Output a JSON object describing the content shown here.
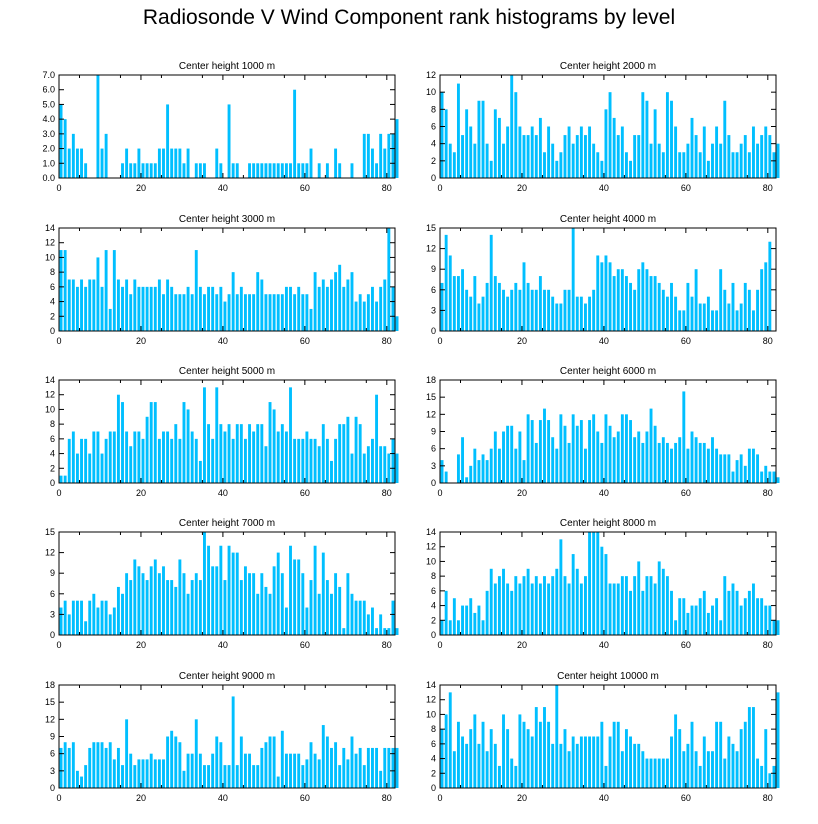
{
  "title": "Radiosonde V Wind Component rank histograms by level",
  "colors": {
    "bar": "#00BFFF",
    "axis": "#000000",
    "background": "#ffffff"
  },
  "chart_data": [
    {
      "type": "bar",
      "title": "Center height 1000 m",
      "xlim": [
        0,
        82
      ],
      "ylim": [
        0,
        7
      ],
      "xticks": [
        0,
        20,
        40,
        60,
        80
      ],
      "yticks": [
        "0.0",
        "1.0",
        "2.0",
        "3.0",
        "4.0",
        "5.0",
        "6.0",
        "7.0"
      ],
      "values": [
        5,
        4,
        2,
        3,
        2,
        2,
        1,
        0,
        0,
        7,
        2,
        3,
        0,
        0,
        0,
        1,
        2,
        1,
        1,
        2,
        1,
        1,
        1,
        1,
        2,
        2,
        5,
        2,
        2,
        2,
        1,
        2,
        0,
        1,
        1,
        1,
        0,
        0,
        2,
        1,
        0,
        5,
        1,
        1,
        0,
        0,
        1,
        1,
        1,
        1,
        1,
        1,
        1,
        1,
        1,
        1,
        1,
        6,
        1,
        1,
        1,
        2,
        0,
        1,
        0,
        1,
        0,
        2,
        1,
        0,
        0,
        1,
        0,
        0,
        3,
        3,
        2,
        1,
        3,
        2,
        3,
        3,
        4
      ]
    },
    {
      "type": "bar",
      "title": "Center height 2000 m",
      "xlim": [
        0,
        82
      ],
      "ylim": [
        0,
        12
      ],
      "xticks": [
        0,
        20,
        40,
        60,
        80
      ],
      "yticks": [
        "0",
        "2",
        "4",
        "6",
        "8",
        "10",
        "12"
      ],
      "values": [
        10,
        8,
        4,
        3,
        11,
        5,
        8,
        6,
        4,
        9,
        9,
        4,
        2,
        8,
        7,
        4,
        6,
        12,
        10,
        6,
        5,
        5,
        6,
        5,
        7,
        3,
        6,
        4,
        2,
        3,
        5,
        6,
        4,
        5,
        6,
        5,
        6,
        4,
        3,
        2,
        8,
        10,
        7,
        5,
        6,
        3,
        2,
        5,
        5,
        10,
        9,
        4,
        8,
        4,
        3,
        10,
        9,
        6,
        3,
        3,
        4,
        7,
        5,
        3,
        6,
        2,
        4,
        6,
        4,
        9,
        5,
        3,
        3,
        4,
        5,
        3,
        6,
        4,
        5,
        6,
        5,
        3,
        4
      ]
    },
    {
      "type": "bar",
      "title": "Center height 3000 m",
      "xlim": [
        0,
        82
      ],
      "ylim": [
        0,
        14
      ],
      "xticks": [
        0,
        20,
        40,
        60,
        80
      ],
      "yticks": [
        "0",
        "2",
        "4",
        "6",
        "8",
        "10",
        "12",
        "14"
      ],
      "values": [
        11,
        11,
        7,
        7,
        6,
        7,
        6,
        7,
        7,
        10,
        6,
        11,
        3,
        11,
        7,
        6,
        7,
        5,
        7,
        6,
        6,
        6,
        6,
        6,
        7,
        5,
        7,
        6,
        5,
        5,
        5,
        6,
        5,
        11,
        6,
        5,
        6,
        6,
        5,
        6,
        4,
        5,
        8,
        5,
        6,
        5,
        5,
        5,
        8,
        7,
        5,
        5,
        5,
        5,
        5,
        6,
        6,
        5,
        6,
        5,
        5,
        3,
        8,
        6,
        7,
        6,
        7,
        8,
        9,
        6,
        7,
        8,
        4,
        5,
        4,
        5,
        6,
        4,
        6,
        7,
        14,
        6,
        2
      ]
    },
    {
      "type": "bar",
      "title": "Center height 4000 m",
      "xlim": [
        0,
        82
      ],
      "ylim": [
        0,
        15
      ],
      "xticks": [
        0,
        20,
        40,
        60,
        80
      ],
      "yticks": [
        "0",
        "3",
        "6",
        "9",
        "12",
        "15"
      ],
      "values": [
        7,
        14,
        11,
        8,
        8,
        9,
        6,
        5,
        8,
        4,
        5,
        7,
        14,
        8,
        7,
        6,
        5,
        6,
        7,
        6,
        10,
        7,
        6,
        6,
        8,
        6,
        6,
        5,
        4,
        4,
        6,
        6,
        15,
        5,
        5,
        4,
        5,
        6,
        11,
        10,
        11,
        10,
        8,
        9,
        9,
        8,
        7,
        6,
        9,
        10,
        9,
        8,
        8,
        7,
        6,
        5,
        7,
        5,
        3,
        3,
        7,
        5,
        9,
        4,
        4,
        5,
        3,
        3,
        9,
        6,
        4,
        7,
        3,
        4,
        7,
        6,
        3,
        6,
        9,
        10,
        13
      ]
    },
    {
      "type": "bar",
      "title": "Center height 5000 m",
      "xlim": [
        0,
        82
      ],
      "ylim": [
        0,
        14
      ],
      "xticks": [
        0,
        20,
        40,
        60,
        80
      ],
      "yticks": [
        "0",
        "2",
        "4",
        "6",
        "8",
        "10",
        "12",
        "14"
      ],
      "values": [
        1,
        1,
        6,
        7,
        4,
        6,
        6,
        4,
        7,
        7,
        4,
        6,
        7,
        7,
        12,
        11,
        7,
        5,
        7,
        7,
        6,
        9,
        11,
        11,
        6,
        7,
        7,
        6,
        8,
        6,
        11,
        10,
        7,
        6,
        3,
        13,
        8,
        6,
        13,
        8,
        7,
        8,
        6,
        8,
        8,
        6,
        8,
        7,
        8,
        8,
        5,
        11,
        10,
        7,
        8,
        7,
        13,
        6,
        6,
        6,
        7,
        6,
        6,
        5,
        8,
        6,
        3,
        6,
        8,
        8,
        9,
        4,
        9,
        8,
        4,
        5,
        6,
        12,
        5,
        5,
        4,
        6,
        4
      ]
    },
    {
      "type": "bar",
      "title": "Center height 6000 m",
      "xlim": [
        0,
        82
      ],
      "ylim": [
        0,
        18
      ],
      "xticks": [
        0,
        20,
        40,
        60,
        80
      ],
      "yticks": [
        "0",
        "3",
        "6",
        "9",
        "12",
        "15",
        "18"
      ],
      "values": [
        4,
        2,
        0,
        0,
        5,
        8,
        1,
        3,
        6,
        4,
        5,
        4,
        6,
        9,
        6,
        9,
        10,
        10,
        6,
        9,
        4,
        12,
        11,
        7,
        11,
        13,
        11,
        8,
        6,
        12,
        10,
        7,
        12,
        10,
        11,
        6,
        11,
        12,
        9,
        7,
        12,
        10,
        8,
        9,
        12,
        12,
        11,
        8,
        9,
        7,
        9,
        13,
        10,
        7,
        8,
        7,
        6,
        7,
        8,
        16,
        6,
        9,
        8,
        7,
        7,
        6,
        8,
        6,
        5,
        5,
        5,
        2,
        4,
        5,
        3,
        6,
        6,
        5,
        2,
        3,
        2,
        2,
        1
      ]
    },
    {
      "type": "bar",
      "title": "Center height 7000 m",
      "xlim": [
        0,
        82
      ],
      "ylim": [
        0,
        15
      ],
      "xticks": [
        0,
        20,
        40,
        60,
        80
      ],
      "yticks": [
        "0",
        "3",
        "6",
        "9",
        "12",
        "15"
      ],
      "values": [
        4,
        5,
        3,
        5,
        5,
        5,
        2,
        5,
        6,
        4,
        5,
        5,
        3,
        4,
        7,
        6,
        9,
        8,
        11,
        10,
        9,
        8,
        10,
        11,
        9,
        10,
        8,
        8,
        7,
        11,
        9,
        6,
        8,
        9,
        8,
        15,
        13,
        10,
        10,
        13,
        8,
        13,
        12,
        12,
        8,
        10,
        9,
        9,
        6,
        9,
        7,
        6,
        10,
        12,
        9,
        4,
        13,
        11,
        11,
        9,
        4,
        8,
        13,
        6,
        12,
        8,
        6,
        9,
        7,
        1,
        9,
        6,
        5,
        5,
        5,
        3,
        4,
        1,
        3,
        1,
        1,
        5,
        1
      ]
    },
    {
      "type": "bar",
      "title": "Center height 8000 m",
      "xlim": [
        0,
        82
      ],
      "ylim": [
        0,
        14
      ],
      "xticks": [
        0,
        20,
        40,
        60,
        80
      ],
      "yticks": [
        "0",
        "2",
        "4",
        "6",
        "8",
        "10",
        "12",
        "14"
      ],
      "values": [
        2,
        6,
        2,
        5,
        2,
        4,
        4,
        5,
        3,
        4,
        2,
        6,
        9,
        7,
        8,
        9,
        7,
        6,
        8,
        7,
        8,
        9,
        7,
        8,
        7,
        8,
        7,
        8,
        9,
        13,
        8,
        7,
        11,
        9,
        7,
        8,
        14,
        14,
        14,
        12,
        11,
        7,
        7,
        7,
        8,
        8,
        6,
        8,
        10,
        6,
        8,
        8,
        7,
        10,
        9,
        8,
        6,
        2,
        5,
        5,
        3,
        4,
        4,
        5,
        6,
        3,
        4,
        5,
        2,
        8,
        6,
        7,
        6,
        4,
        5,
        6,
        7,
        5,
        5,
        4,
        4,
        2,
        2
      ]
    },
    {
      "type": "bar",
      "title": "Center height 9000 m",
      "xlim": [
        0,
        82
      ],
      "ylim": [
        0,
        18
      ],
      "xticks": [
        0,
        20,
        40,
        60,
        80
      ],
      "yticks": [
        "0",
        "3",
        "6",
        "9",
        "12",
        "15",
        "18"
      ],
      "values": [
        7,
        8,
        7,
        8,
        3,
        2,
        4,
        7,
        8,
        8,
        8,
        7,
        8,
        5,
        7,
        4,
        12,
        6,
        4,
        5,
        5,
        5,
        6,
        5,
        5,
        5,
        9,
        10,
        9,
        8,
        3,
        6,
        6,
        12,
        6,
        4,
        4,
        6,
        9,
        8,
        4,
        4,
        16,
        4,
        9,
        6,
        6,
        4,
        4,
        7,
        8,
        9,
        9,
        2,
        10,
        6,
        6,
        6,
        6,
        4,
        5,
        8,
        6,
        5,
        11,
        9,
        7,
        8,
        4,
        7,
        5,
        9,
        6,
        7,
        4,
        7,
        7,
        7,
        3,
        7,
        7,
        7,
        7
      ]
    },
    {
      "type": "bar",
      "title": "Center height 10000 m",
      "xlim": [
        0,
        82
      ],
      "ylim": [
        0,
        14
      ],
      "xticks": [
        0,
        20,
        40,
        60,
        80
      ],
      "yticks": [
        "0",
        "2",
        "4",
        "6",
        "8",
        "10",
        "12",
        "14"
      ],
      "values": [
        8,
        10,
        13,
        5,
        9,
        7,
        6,
        8,
        10,
        6,
        9,
        5,
        8,
        6,
        3,
        10,
        8,
        4,
        3,
        10,
        9,
        8,
        7,
        11,
        9,
        11,
        9,
        6,
        14,
        6,
        8,
        5,
        7,
        6,
        7,
        7,
        7,
        7,
        7,
        9,
        3,
        7,
        9,
        9,
        5,
        8,
        7,
        6,
        6,
        5,
        4,
        4,
        4,
        4,
        4,
        4,
        7,
        10,
        8,
        5,
        6,
        9,
        5,
        3,
        7,
        5,
        5,
        9,
        9,
        4,
        7,
        6,
        5,
        8,
        9,
        11,
        11,
        4,
        3,
        8,
        2,
        3,
        13
      ]
    }
  ]
}
